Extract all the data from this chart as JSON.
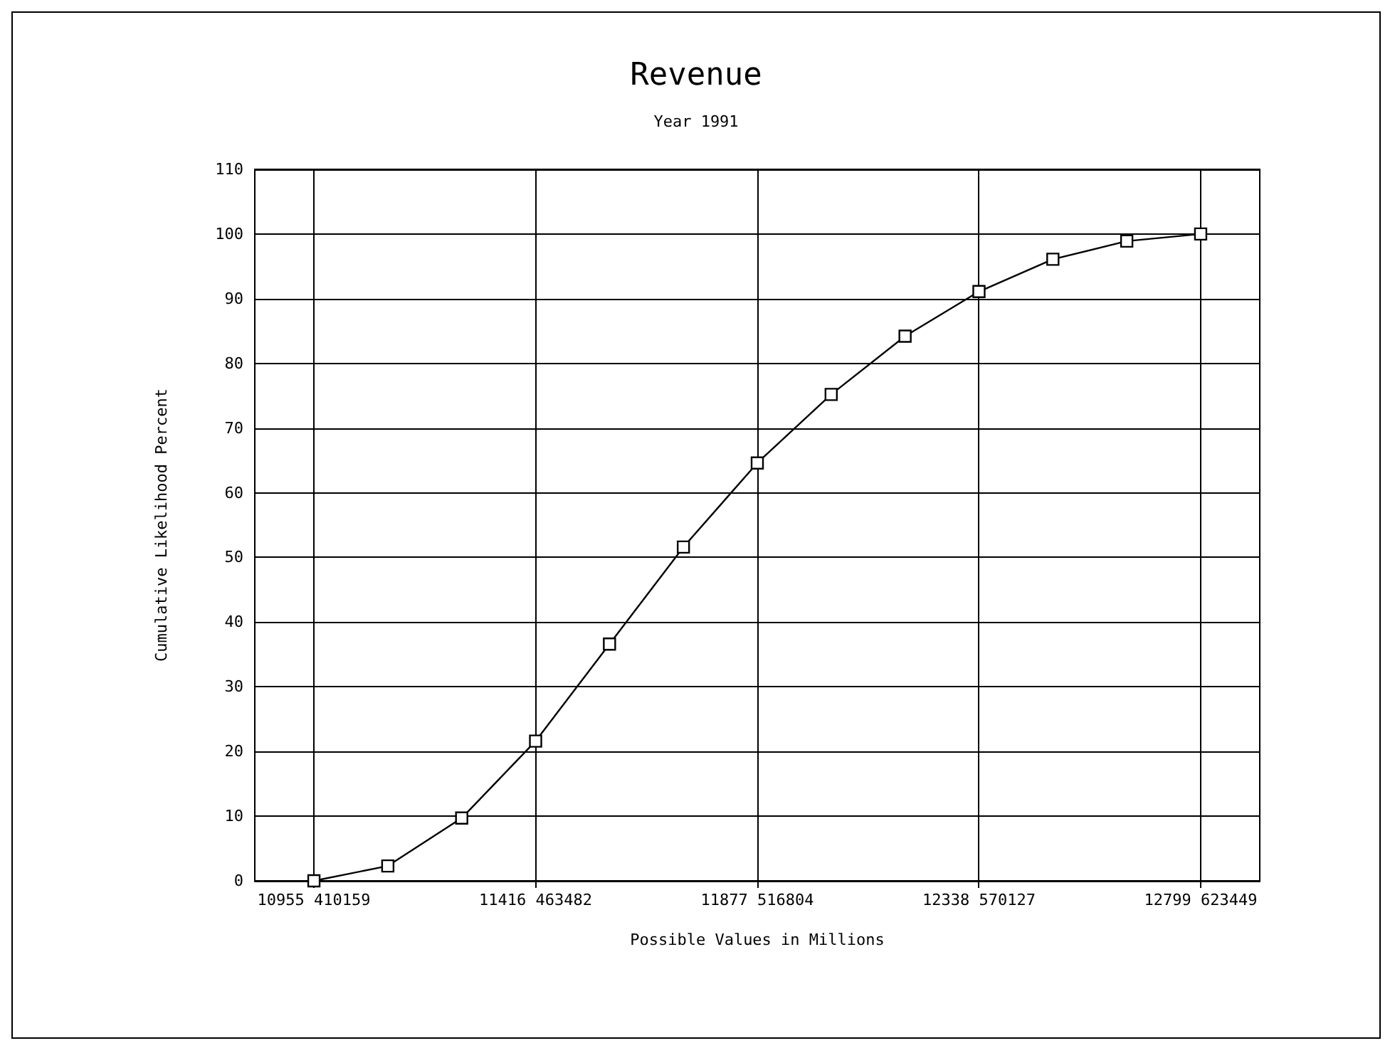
{
  "chart_data": {
    "type": "line",
    "title": "Revenue",
    "subtitle": "Year 1991",
    "xlabel": "Possible Values in Millions",
    "ylabel": "Cumulative Likelihood Percent",
    "categories": [
      "10955 410159",
      null,
      null,
      "11416 463482",
      null,
      null,
      "11877 516804",
      null,
      null,
      "12338 570127",
      null,
      null,
      "12799 623449"
    ],
    "series": [
      {
        "color": "#000000",
        "values": [
          0,
          2.3,
          9.7,
          21.6,
          36.6,
          51.6,
          64.6,
          75.2,
          84.2,
          91.1,
          96.1,
          98.9,
          100
        ]
      }
    ],
    "ylim": [
      0,
      110
    ],
    "yticks": [
      0,
      10,
      20,
      30,
      40,
      50,
      60,
      70,
      80,
      90,
      100,
      110
    ],
    "grid": true,
    "marker": "square",
    "line_style": "solid"
  }
}
